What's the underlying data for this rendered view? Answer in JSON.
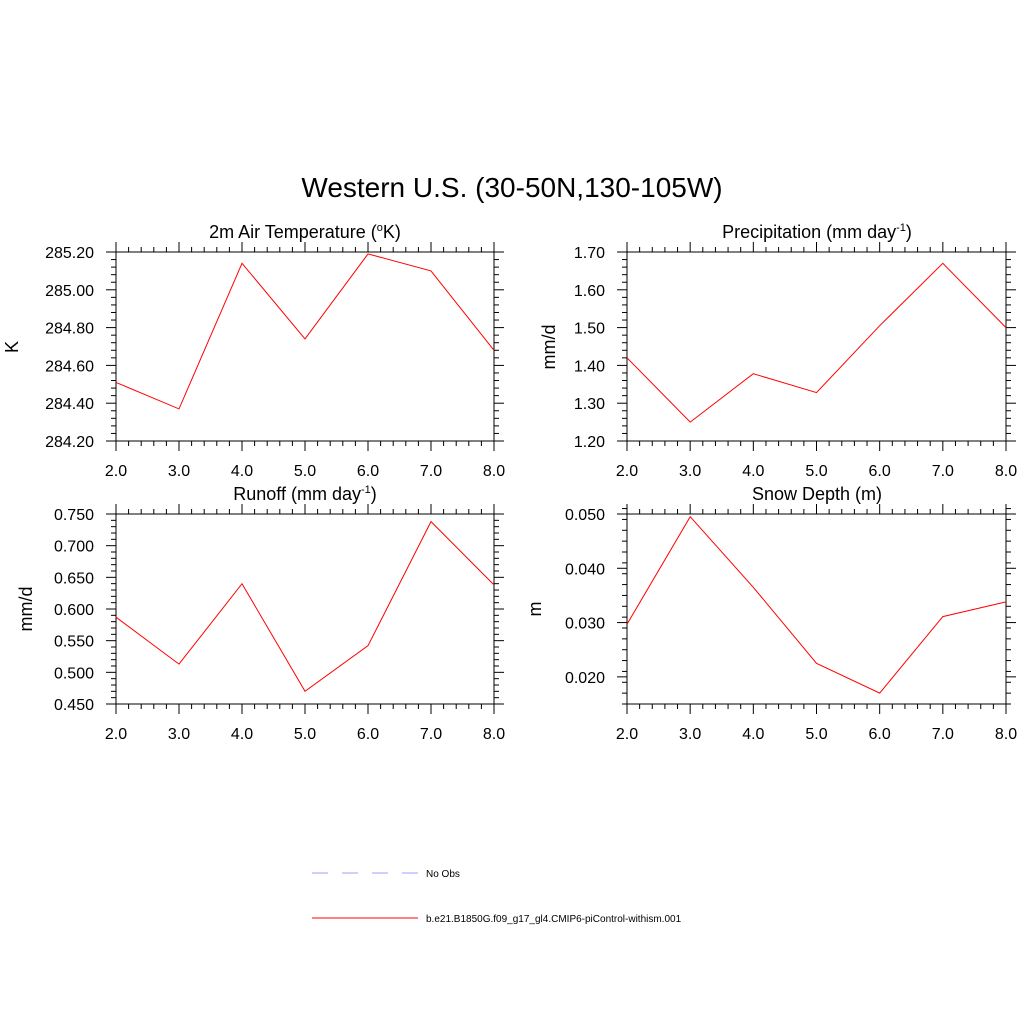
{
  "figure": {
    "title": "Western U.S. (30-50N,130-105W)",
    "colors": {
      "model": "#ff0000",
      "obs": "#a0a0ff",
      "axes": "#000000"
    }
  },
  "legend": {
    "items": [
      {
        "label": "No Obs",
        "color": "#a0a0ff",
        "style": "dashed"
      },
      {
        "label": "b.e21.B1850G.f09_g17_gl4.CMIP6-piControl-withism.001",
        "color": "#ff0000",
        "style": "solid"
      }
    ]
  },
  "chart_data": [
    {
      "type": "line",
      "title": "2m Air Temperature (",
      "title_sup": "o",
      "title_end": "K)",
      "ylabel": "K",
      "x": [
        2.0,
        3.0,
        4.0,
        5.0,
        6.0,
        7.0,
        8.0
      ],
      "xticks": [
        "2.0",
        "3.0",
        "4.0",
        "5.0",
        "6.0",
        "7.0",
        "8.0"
      ],
      "xlim": [
        2.0,
        8.0
      ],
      "ylim": [
        284.2,
        285.2
      ],
      "yticks": [
        284.2,
        284.4,
        284.6,
        284.8,
        285.0,
        285.2
      ],
      "ytick_labels": [
        "284.20",
        "284.40",
        "284.60",
        "284.80",
        "285.00",
        "285.20"
      ],
      "series": [
        {
          "values": [
            284.51,
            284.37,
            285.14,
            284.74,
            285.19,
            285.1,
            284.68
          ]
        }
      ]
    },
    {
      "type": "line",
      "title": "Precipitation (mm day",
      "title_sup": "-1",
      "title_end": ")",
      "ylabel": "mm/d",
      "x": [
        2.0,
        3.0,
        4.0,
        5.0,
        6.0,
        7.0,
        8.0
      ],
      "xticks": [
        "2.0",
        "3.0",
        "4.0",
        "5.0",
        "6.0",
        "7.0",
        "8.0"
      ],
      "xlim": [
        2.0,
        8.0
      ],
      "ylim": [
        1.2,
        1.7
      ],
      "yticks": [
        1.2,
        1.3,
        1.4,
        1.5,
        1.6,
        1.7
      ],
      "ytick_labels": [
        "1.20",
        "1.30",
        "1.40",
        "1.50",
        "1.60",
        "1.70"
      ],
      "series": [
        {
          "values": [
            1.42,
            1.25,
            1.378,
            1.328,
            1.505,
            1.67,
            1.5
          ]
        }
      ]
    },
    {
      "type": "line",
      "title": "Runoff (mm day",
      "title_sup": "-1",
      "title_end": ")",
      "ylabel": "mm/d",
      "x": [
        2.0,
        3.0,
        4.0,
        5.0,
        6.0,
        7.0,
        8.0
      ],
      "xticks": [
        "2.0",
        "3.0",
        "4.0",
        "5.0",
        "6.0",
        "7.0",
        "8.0"
      ],
      "xlim": [
        2.0,
        8.0
      ],
      "ylim": [
        0.45,
        0.75
      ],
      "yticks": [
        0.45,
        0.5,
        0.55,
        0.6,
        0.65,
        0.7,
        0.75
      ],
      "ytick_labels": [
        "0.450",
        "0.500",
        "0.550",
        "0.600",
        "0.650",
        "0.700",
        "0.750"
      ],
      "series": [
        {
          "values": [
            0.587,
            0.513,
            0.64,
            0.47,
            0.542,
            0.738,
            0.638
          ]
        }
      ]
    },
    {
      "type": "line",
      "title": "Snow Depth (m)",
      "title_sup": "",
      "title_end": "",
      "ylabel": "m",
      "x": [
        2.0,
        3.0,
        4.0,
        5.0,
        6.0,
        7.0,
        8.0
      ],
      "xticks": [
        "2.0",
        "3.0",
        "4.0",
        "5.0",
        "6.0",
        "7.0",
        "8.0"
      ],
      "xlim": [
        2.0,
        8.0
      ],
      "ylim": [
        0.015,
        0.05
      ],
      "yticks": [
        0.02,
        0.03,
        0.04,
        0.05
      ],
      "ytick_labels": [
        "0.020",
        "0.030",
        "0.040",
        "0.050"
      ],
      "series": [
        {
          "values": [
            0.0297,
            0.0495,
            0.0365,
            0.0225,
            0.017,
            0.0311,
            0.0338
          ]
        }
      ]
    }
  ]
}
